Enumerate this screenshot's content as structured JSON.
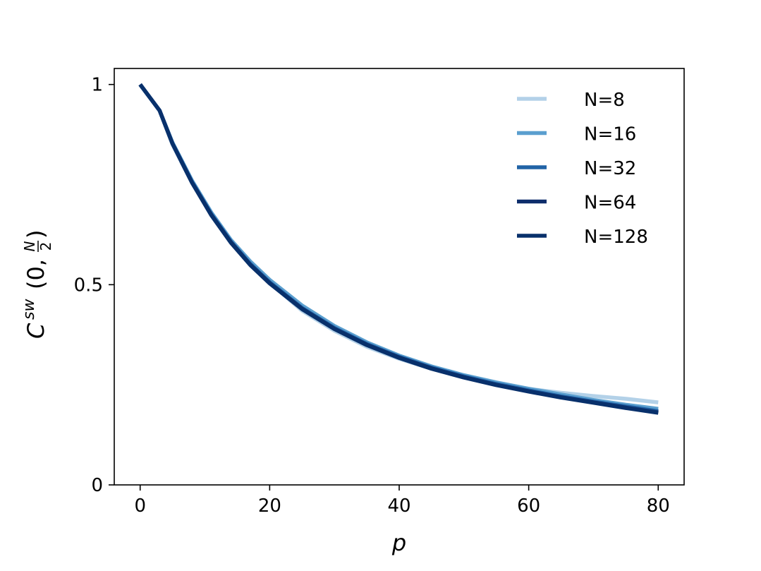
{
  "chart_data": {
    "type": "line",
    "xlabel": "p",
    "ylabel": "C^{sw}(0, N/2)",
    "ylabel_parts": {
      "base": "C",
      "superscript": "sw",
      "open": "(0,",
      "frac_num": "N",
      "frac_den": "2",
      "close": ")"
    },
    "xlim": [
      -4,
      84
    ],
    "ylim": [
      0,
      1.04
    ],
    "xticks": [
      0,
      20,
      40,
      60,
      80
    ],
    "xtick_labels": [
      "0",
      "20",
      "40",
      "60",
      "80"
    ],
    "yticks": [
      0,
      0.5,
      1
    ],
    "ytick_labels": [
      "0",
      "0.5",
      "1"
    ],
    "grid": false,
    "legend_position": "top-right",
    "series": [
      {
        "name": "N=8",
        "color": "#b3d1e8",
        "x": [
          0,
          3,
          5,
          8,
          11,
          14,
          17,
          20,
          25,
          30,
          35,
          40,
          45,
          50,
          55,
          60,
          65,
          70,
          75,
          80
        ],
        "y": [
          1.0,
          0.935,
          0.85,
          0.755,
          0.675,
          0.605,
          0.55,
          0.505,
          0.435,
          0.385,
          0.345,
          0.315,
          0.29,
          0.27,
          0.255,
          0.24,
          0.23,
          0.222,
          0.215,
          0.206
        ]
      },
      {
        "name": "N=16",
        "color": "#5b9fcf",
        "x": [
          0,
          3,
          5,
          8,
          11,
          14,
          17,
          20,
          25,
          30,
          35,
          40,
          45,
          50,
          55,
          60,
          65,
          70,
          75,
          80
        ],
        "y": [
          1.0,
          0.935,
          0.855,
          0.76,
          0.68,
          0.612,
          0.558,
          0.512,
          0.448,
          0.397,
          0.356,
          0.323,
          0.296,
          0.274,
          0.256,
          0.24,
          0.226,
          0.212,
          0.2,
          0.19
        ]
      },
      {
        "name": "N=32",
        "color": "#2163a6",
        "x": [
          0,
          3,
          5,
          8,
          11,
          14,
          17,
          20,
          25,
          30,
          35,
          40,
          45,
          50,
          55,
          60,
          65,
          70,
          75,
          80
        ],
        "y": [
          1.0,
          0.935,
          0.853,
          0.757,
          0.676,
          0.608,
          0.552,
          0.506,
          0.442,
          0.392,
          0.352,
          0.32,
          0.293,
          0.271,
          0.252,
          0.236,
          0.221,
          0.208,
          0.196,
          0.184
        ]
      },
      {
        "name": "N=64",
        "color": "#0d2d6b",
        "x": [
          0,
          3,
          5,
          8,
          11,
          14,
          17,
          20,
          25,
          30,
          35,
          40,
          45,
          50,
          55,
          60,
          65,
          70,
          75,
          80
        ],
        "y": [
          1.0,
          0.935,
          0.852,
          0.755,
          0.674,
          0.606,
          0.55,
          0.504,
          0.44,
          0.39,
          0.35,
          0.318,
          0.291,
          0.269,
          0.25,
          0.234,
          0.219,
          0.206,
          0.193,
          0.181
        ]
      },
      {
        "name": "N=128",
        "color": "#08306b",
        "x": [
          0,
          3,
          5,
          8,
          11,
          14,
          17,
          20,
          25,
          30,
          35,
          40,
          45,
          50,
          55,
          60,
          65,
          70,
          75,
          80
        ],
        "y": [
          1.0,
          0.935,
          0.852,
          0.755,
          0.673,
          0.605,
          0.549,
          0.503,
          0.439,
          0.389,
          0.349,
          0.317,
          0.29,
          0.268,
          0.249,
          0.233,
          0.218,
          0.205,
          0.192,
          0.18
        ]
      }
    ]
  }
}
